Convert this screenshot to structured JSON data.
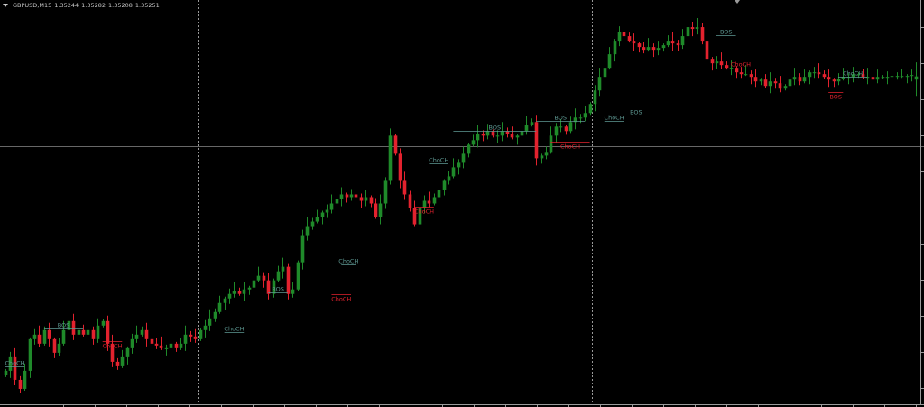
{
  "header": {
    "symbol": "GBPUSD,M15",
    "open": "1.35244",
    "high": "1.35282",
    "low": "1.35208",
    "close": "1.35251"
  },
  "colors": {
    "background": "#000000",
    "bull": "#1f8a2a",
    "bear": "#e3222e",
    "bull_label": "#5f9a94",
    "bear_label": "#e3222e",
    "grid_line": "#8a8a8a",
    "separator": "#bdbdbd"
  },
  "chart_data": {
    "type": "candlestick",
    "title": "",
    "ylim": [
      1.3452,
      1.3542
    ],
    "grid": false,
    "horizontal_line": 1.35096,
    "period_separators_after_index": [
      39,
      120
    ],
    "close": [
      1.346,
      1.3463,
      1.3458,
      1.3456,
      1.346,
      1.3467,
      1.3468,
      1.3466,
      1.3469,
      1.3467,
      1.3464,
      1.3466,
      1.3469,
      1.3471,
      1.3468,
      1.3469,
      1.3468,
      1.3469,
      1.3467,
      1.347,
      1.3471,
      1.3466,
      1.3462,
      1.3461,
      1.3463,
      1.3465,
      1.3467,
      1.3468,
      1.3469,
      1.3467,
      1.3466,
      1.34656,
      1.3465,
      1.3465,
      1.3466,
      1.3465,
      1.3466,
      1.3468,
      1.34676,
      1.3467,
      1.3469,
      1.347,
      1.34716,
      1.3473,
      1.3475,
      1.3476,
      1.3477,
      1.34776,
      1.3477,
      1.3478,
      1.34784,
      1.348,
      1.3481,
      1.348,
      1.3477,
      1.348,
      1.3482,
      1.3483,
      1.3477,
      1.3478,
      1.3484,
      1.349,
      1.3492,
      1.3493,
      1.3494,
      1.3495,
      1.34956,
      1.3497,
      1.3498,
      1.3499,
      1.34984,
      1.3499,
      1.34984,
      1.34976,
      1.34984,
      1.3497,
      1.3494,
      1.3497,
      1.3502,
      1.3512,
      1.3508,
      1.3502,
      1.3499,
      1.3496,
      1.34924,
      1.3496,
      1.34976,
      1.3497,
      1.34984,
      1.35,
      1.3502,
      1.3503,
      1.3505,
      1.3506,
      1.3508,
      1.351,
      1.3511,
      1.35124,
      1.3512,
      1.3513,
      1.3512,
      1.3512,
      1.3513,
      1.35124,
      1.35116,
      1.3512,
      1.3513,
      1.35144,
      1.3515,
      1.3507,
      1.35076,
      1.35084,
      1.3512,
      1.3514,
      1.3514,
      1.3513,
      1.3515,
      1.3516,
      1.3516,
      1.3517,
      1.3519,
      1.3522,
      1.3525,
      1.3527,
      1.353,
      1.3533,
      1.3535,
      1.3534,
      1.3533,
      1.35324,
      1.35316,
      1.3531,
      1.35316,
      1.3531,
      1.35314,
      1.3532,
      1.3533,
      1.35324,
      1.3532,
      1.3534,
      1.3536,
      1.35356,
      1.3536,
      1.3533,
      1.3529,
      1.3528,
      1.35284,
      1.35276,
      1.3527,
      1.3527,
      1.3526,
      1.35256,
      1.35256,
      1.3525,
      1.3524,
      1.35244,
      1.3523,
      1.3524,
      1.35236,
      1.35224,
      1.3523,
      1.35244,
      1.3525,
      1.3524,
      1.3525,
      1.3526,
      1.3526,
      1.35256,
      1.3525,
      1.35244,
      1.3524,
      1.35246,
      1.3525,
      1.3525,
      1.35256,
      1.35256,
      1.3525,
      1.3525,
      1.35244,
      1.3525,
      1.3525,
      1.3525,
      1.35252,
      1.35252,
      1.35252,
      1.35252,
      1.35254,
      1.35251
    ],
    "annotations": [
      {
        "label": "ChoCH",
        "dir": "bull",
        "price": 1.3461,
        "from": 0,
        "to": 4
      },
      {
        "label": "BOS",
        "dir": "bull",
        "price": 1.34694,
        "from": 8,
        "to": 16
      },
      {
        "label": "ChoCH",
        "dir": "bear",
        "price": 1.34666,
        "from": 20,
        "to": 24
      },
      {
        "label": "ChoCH",
        "dir": "bull",
        "price": 1.34686,
        "from": 45,
        "to": 49
      },
      {
        "label": "BOS",
        "dir": "bull",
        "price": 1.34774,
        "from": 54,
        "to": 58
      },
      {
        "label": "ChoCH",
        "dir": "bear",
        "price": 1.3477,
        "from": 67,
        "to": 71
      },
      {
        "label": "ChoCH",
        "dir": "bull",
        "price": 1.34836,
        "from": 69,
        "to": 72
      },
      {
        "label": "ChoCH",
        "dir": "bear",
        "price": 1.34964,
        "from": 84,
        "to": 88
      },
      {
        "label": "ChoCH",
        "dir": "bull",
        "price": 1.35058,
        "from": 87,
        "to": 91
      },
      {
        "label": "BOS",
        "dir": "bull",
        "price": 1.3513,
        "from": 92,
        "to": 109
      },
      {
        "label": "BOS",
        "dir": "bull",
        "price": 1.35152,
        "from": 109,
        "to": 119
      },
      {
        "label": "ChoCH",
        "dir": "bear",
        "price": 1.35106,
        "from": 112,
        "to": 120
      },
      {
        "label": "ChoCH",
        "dir": "bull",
        "price": 1.35152,
        "from": 123,
        "to": 127
      },
      {
        "label": "BOS",
        "dir": "bull",
        "price": 1.35164,
        "from": 128,
        "to": 131
      },
      {
        "label": "BOS",
        "dir": "bull",
        "price": 1.35342,
        "from": 146,
        "to": 150
      },
      {
        "label": "ChoCH",
        "dir": "bear",
        "price": 1.35288,
        "from": 149,
        "to": 153
      },
      {
        "label": "BOS",
        "dir": "bear",
        "price": 1.35216,
        "from": 169,
        "to": 172
      },
      {
        "label": "ChoCH",
        "dir": "bull",
        "price": 1.3525,
        "from": 171,
        "to": 177
      },
      {
        "label": "BOS",
        "dir": "bull",
        "price": 1.35258,
        "from": 192,
        "to": 197
      }
    ]
  }
}
